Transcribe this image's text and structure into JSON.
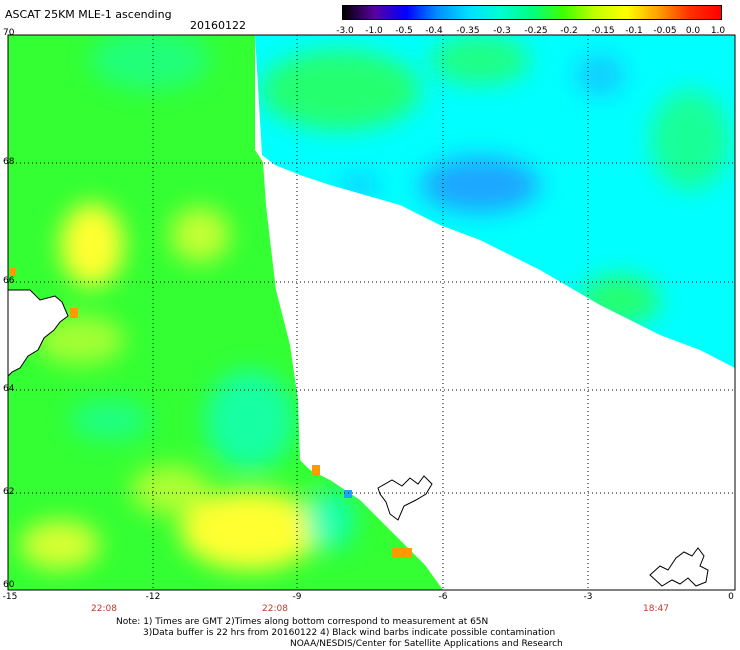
{
  "header": {
    "title": "ASCAT 25KM MLE-1 ascending",
    "date": "20160122"
  },
  "colorbar": {
    "labels": [
      "-3.0",
      "-1.0",
      "-0.5",
      "-0.4",
      "-0.35",
      "-0.3",
      "-0.25",
      "-0.2",
      "-0.15",
      "-0.1",
      "-0.05",
      "0.0",
      "1.0"
    ],
    "colors": [
      "#000000",
      "#5a00a0",
      "#0000ff",
      "#0090ff",
      "#00e0ff",
      "#00ffd0",
      "#00ff80",
      "#40ff00",
      "#c0ff00",
      "#ffff00",
      "#ffa000",
      "#ff3000",
      "#ff0000"
    ]
  },
  "map": {
    "lat_labels": [
      "70",
      "68",
      "66",
      "64",
      "62",
      "60"
    ],
    "lon_labels": [
      "-15",
      "-12",
      "-9",
      "-6",
      "-3",
      "0"
    ],
    "time_labels": [
      "22:08",
      "22:08",
      "18:47"
    ],
    "colors": {
      "green": "#33ff33",
      "cyan": "#00ffff",
      "blue": "#1aa6ff",
      "yellow": "#ffff33",
      "orange": "#ff9900",
      "grid": "#000000"
    }
  },
  "notes": {
    "line1": "Note: 1) Times are GMT 2)Times along bottom correspond to measurement at 65N",
    "line2": "3)Data buffer is 22 hrs from 20160122 4) Black wind barbs indicate possible contamination",
    "line3": "NOAA/NESDIS/Center for Satellite Applications and Research"
  }
}
